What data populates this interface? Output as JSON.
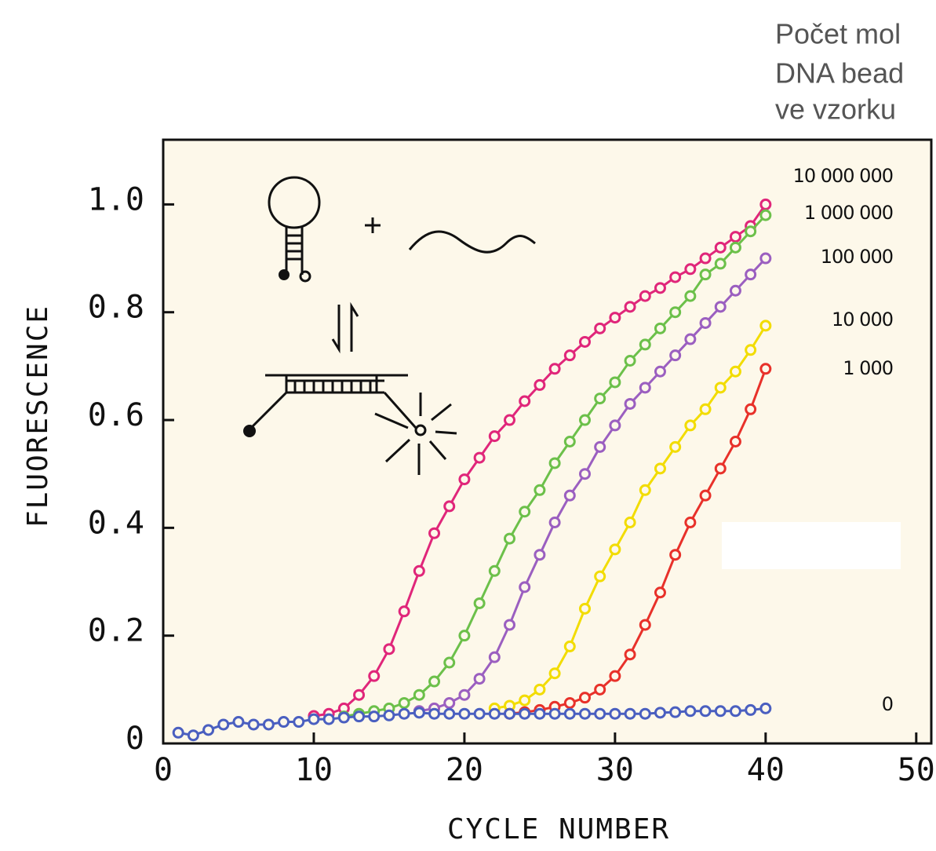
{
  "chart_data": {
    "type": "line",
    "annotation": [
      "Počet mol",
      "DNA bead",
      "ve vzorku"
    ],
    "xlabel": "CYCLE NUMBER",
    "ylabel": "FLUORESCENCE",
    "xlim": [
      0,
      51
    ],
    "ylim": [
      0,
      1.12
    ],
    "xticks": [
      0,
      10,
      20,
      30,
      40,
      50
    ],
    "yticks": [
      0,
      0.2,
      0.4,
      0.6,
      0.8,
      {
        "value": 1,
        "label": "1.0"
      }
    ],
    "x": [
      1,
      2,
      3,
      4,
      5,
      6,
      7,
      8,
      9,
      10,
      11,
      12,
      13,
      14,
      15,
      16,
      17,
      18,
      19,
      20,
      21,
      22,
      23,
      24,
      25,
      26,
      27,
      28,
      29,
      30,
      31,
      32,
      33,
      34,
      35,
      36,
      37,
      38,
      39,
      40
    ],
    "series": [
      {
        "name": "10 000 000",
        "color": "#e0267a",
        "values": [
          null,
          null,
          null,
          null,
          null,
          null,
          null,
          null,
          null,
          0.051,
          0.055,
          0.065,
          0.09,
          0.125,
          0.175,
          0.245,
          0.32,
          0.39,
          0.44,
          0.49,
          0.53,
          0.57,
          0.6,
          0.635,
          0.665,
          0.695,
          0.72,
          0.745,
          0.77,
          0.79,
          0.81,
          0.83,
          0.845,
          0.865,
          0.88,
          0.9,
          0.92,
          0.94,
          0.96,
          1.0
        ]
      },
      {
        "name": "1 000 000",
        "color": "#6cc04a",
        "values": [
          null,
          null,
          null,
          null,
          null,
          null,
          null,
          null,
          null,
          null,
          null,
          0.05,
          0.055,
          0.06,
          0.065,
          0.075,
          0.09,
          0.115,
          0.15,
          0.2,
          0.26,
          0.32,
          0.38,
          0.43,
          0.47,
          0.52,
          0.56,
          0.6,
          0.64,
          0.67,
          0.71,
          0.74,
          0.77,
          0.8,
          0.83,
          0.87,
          0.89,
          0.92,
          0.95,
          0.98
        ]
      },
      {
        "name": "100 000",
        "color": "#9b5fc0",
        "values": [
          null,
          null,
          null,
          null,
          null,
          null,
          null,
          null,
          null,
          null,
          null,
          null,
          null,
          null,
          null,
          null,
          0.06,
          0.065,
          0.075,
          0.09,
          0.12,
          0.16,
          0.22,
          0.29,
          0.35,
          0.41,
          0.46,
          0.5,
          0.55,
          0.59,
          0.63,
          0.66,
          0.69,
          0.72,
          0.75,
          0.78,
          0.81,
          0.84,
          0.87,
          0.9
        ]
      },
      {
        "name": "10 000",
        "color": "#f2dc00",
        "values": [
          null,
          null,
          null,
          null,
          null,
          null,
          null,
          null,
          null,
          null,
          null,
          null,
          null,
          null,
          null,
          null,
          null,
          null,
          null,
          null,
          null,
          0.065,
          0.07,
          0.08,
          0.1,
          0.13,
          0.18,
          0.25,
          0.31,
          0.36,
          0.41,
          0.47,
          0.51,
          0.55,
          0.59,
          0.62,
          0.66,
          0.69,
          0.73,
          0.775
        ]
      },
      {
        "name": "1 000",
        "color": "#e8312a",
        "values": [
          null,
          null,
          null,
          null,
          null,
          null,
          null,
          null,
          null,
          null,
          null,
          null,
          null,
          null,
          null,
          null,
          null,
          null,
          null,
          null,
          null,
          null,
          0.055,
          0.058,
          0.062,
          0.068,
          0.075,
          0.085,
          0.1,
          0.125,
          0.165,
          0.22,
          0.28,
          0.35,
          0.41,
          0.46,
          0.51,
          0.56,
          0.62,
          0.695
        ]
      },
      {
        "name": "0",
        "color": "#4a5fc0",
        "values": [
          0.02,
          0.015,
          0.025,
          0.035,
          0.04,
          0.035,
          0.035,
          0.04,
          0.04,
          0.045,
          0.045,
          0.048,
          0.05,
          0.05,
          0.052,
          0.055,
          0.057,
          0.055,
          0.055,
          0.055,
          0.055,
          0.055,
          0.055,
          0.055,
          0.055,
          0.055,
          0.055,
          0.055,
          0.055,
          0.055,
          0.055,
          0.055,
          0.057,
          0.058,
          0.06,
          0.06,
          0.06,
          0.06,
          0.062,
          0.065
        ]
      }
    ]
  }
}
